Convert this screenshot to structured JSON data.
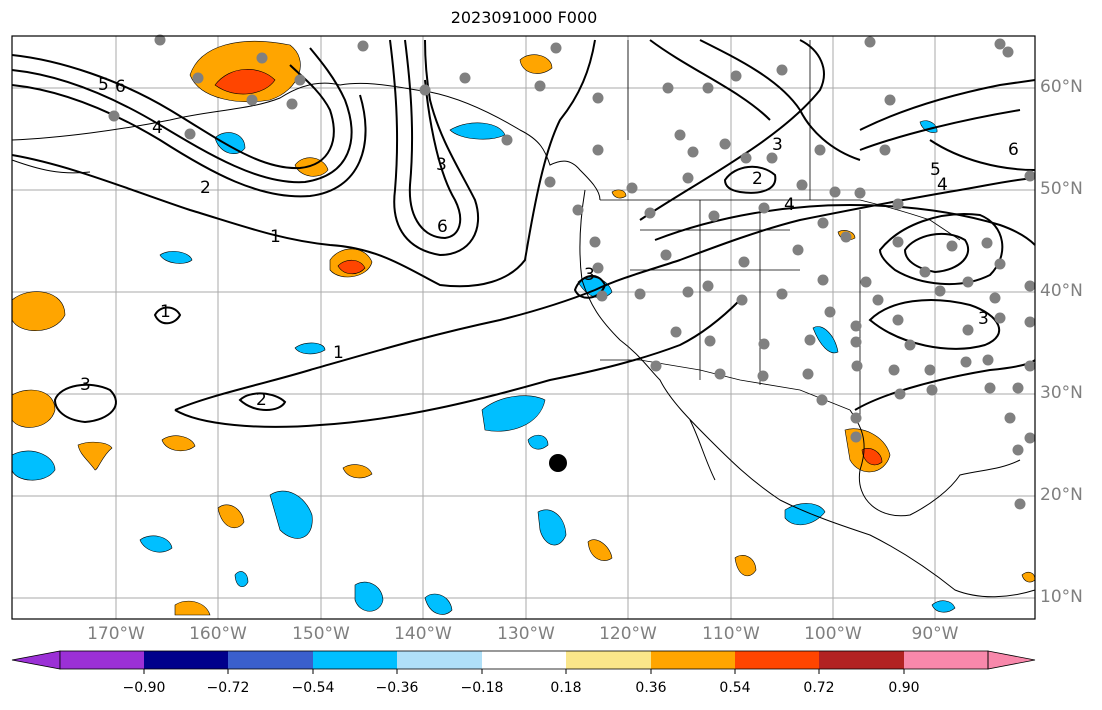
{
  "title": "2023091000 F000",
  "longitude_labels": [
    "170°W",
    "160°W",
    "150°W",
    "140°W",
    "130°W",
    "120°W",
    "110°W",
    "100°W",
    "90°W"
  ],
  "latitude_labels": [
    "60°N",
    "50°N",
    "40°N",
    "30°N",
    "20°N",
    "10°N"
  ],
  "contour_labels": [
    "6",
    "5",
    "4",
    "2",
    "1",
    "3",
    "1",
    "1",
    "2",
    "3",
    "6",
    "3",
    "2",
    "4",
    "3",
    "5",
    "4",
    "3",
    "6"
  ],
  "colorbar": {
    "ticks": [
      "−0.90",
      "−0.72",
      "−0.54",
      "−0.36",
      "−0.18",
      "0.18",
      "0.36",
      "0.54",
      "0.72",
      "0.90"
    ],
    "colors": [
      "#9b30d6",
      "#00008b",
      "#3a5fcd",
      "#00bfff",
      "#b0e0f8",
      "#ffffff",
      "#fae68a",
      "#ffa500",
      "#ff4500",
      "#b22222",
      "#f888ab"
    ]
  },
  "markers": {
    "station_color": "#808080",
    "point_color": "#000000"
  }
}
